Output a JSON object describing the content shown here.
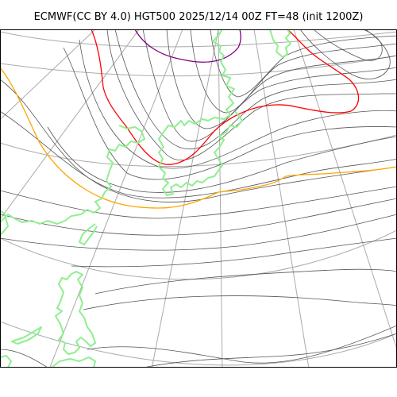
{
  "title": "ECMWF(CC BY 4.0) HGT500 2025/12/14 00Z FT=48 (init 1200Z)",
  "colors": {
    "contour": "#555555",
    "graticule": "#aaaaaa",
    "coastline": "#90ee90",
    "contour_5400": "#ffa500",
    "contour_5700_hi": "#ff0000",
    "contour_5100": "#800080"
  }
}
